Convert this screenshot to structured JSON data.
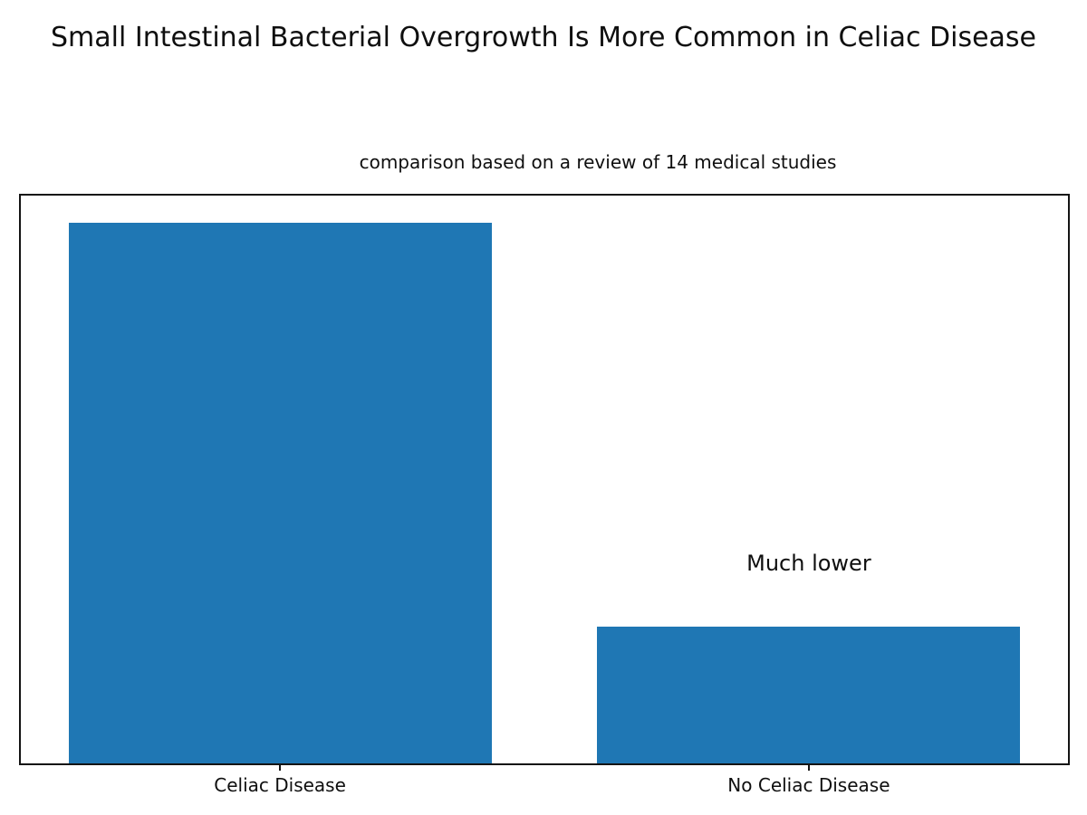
{
  "chart_data": {
    "type": "bar",
    "title": "Small Intestinal Bacterial Overgrowth Is More Common in Celiac Disease",
    "subtitle": "comparison based on a review of 14 medical studies",
    "categories": [
      "Celiac Disease",
      "No Celiac Disease"
    ],
    "values": [
      1.0,
      0.253
    ],
    "values_note": "relative heights; chart shows no y-axis tick labels",
    "xlabel": "",
    "ylabel": "",
    "xlim": [
      -0.49,
      1.49
    ],
    "ylim": [
      0,
      1.05
    ],
    "bar_positions": [
      0,
      1
    ],
    "bar_width": 0.8,
    "bar_color": "#1f77b4",
    "grid": false,
    "legend": null,
    "y_ticks": [],
    "annotations": [
      {
        "text": "Much lower",
        "x": 1,
        "y": 0.37
      }
    ],
    "axes_border_color": "#141414",
    "text_color": "#0f0f0f"
  }
}
